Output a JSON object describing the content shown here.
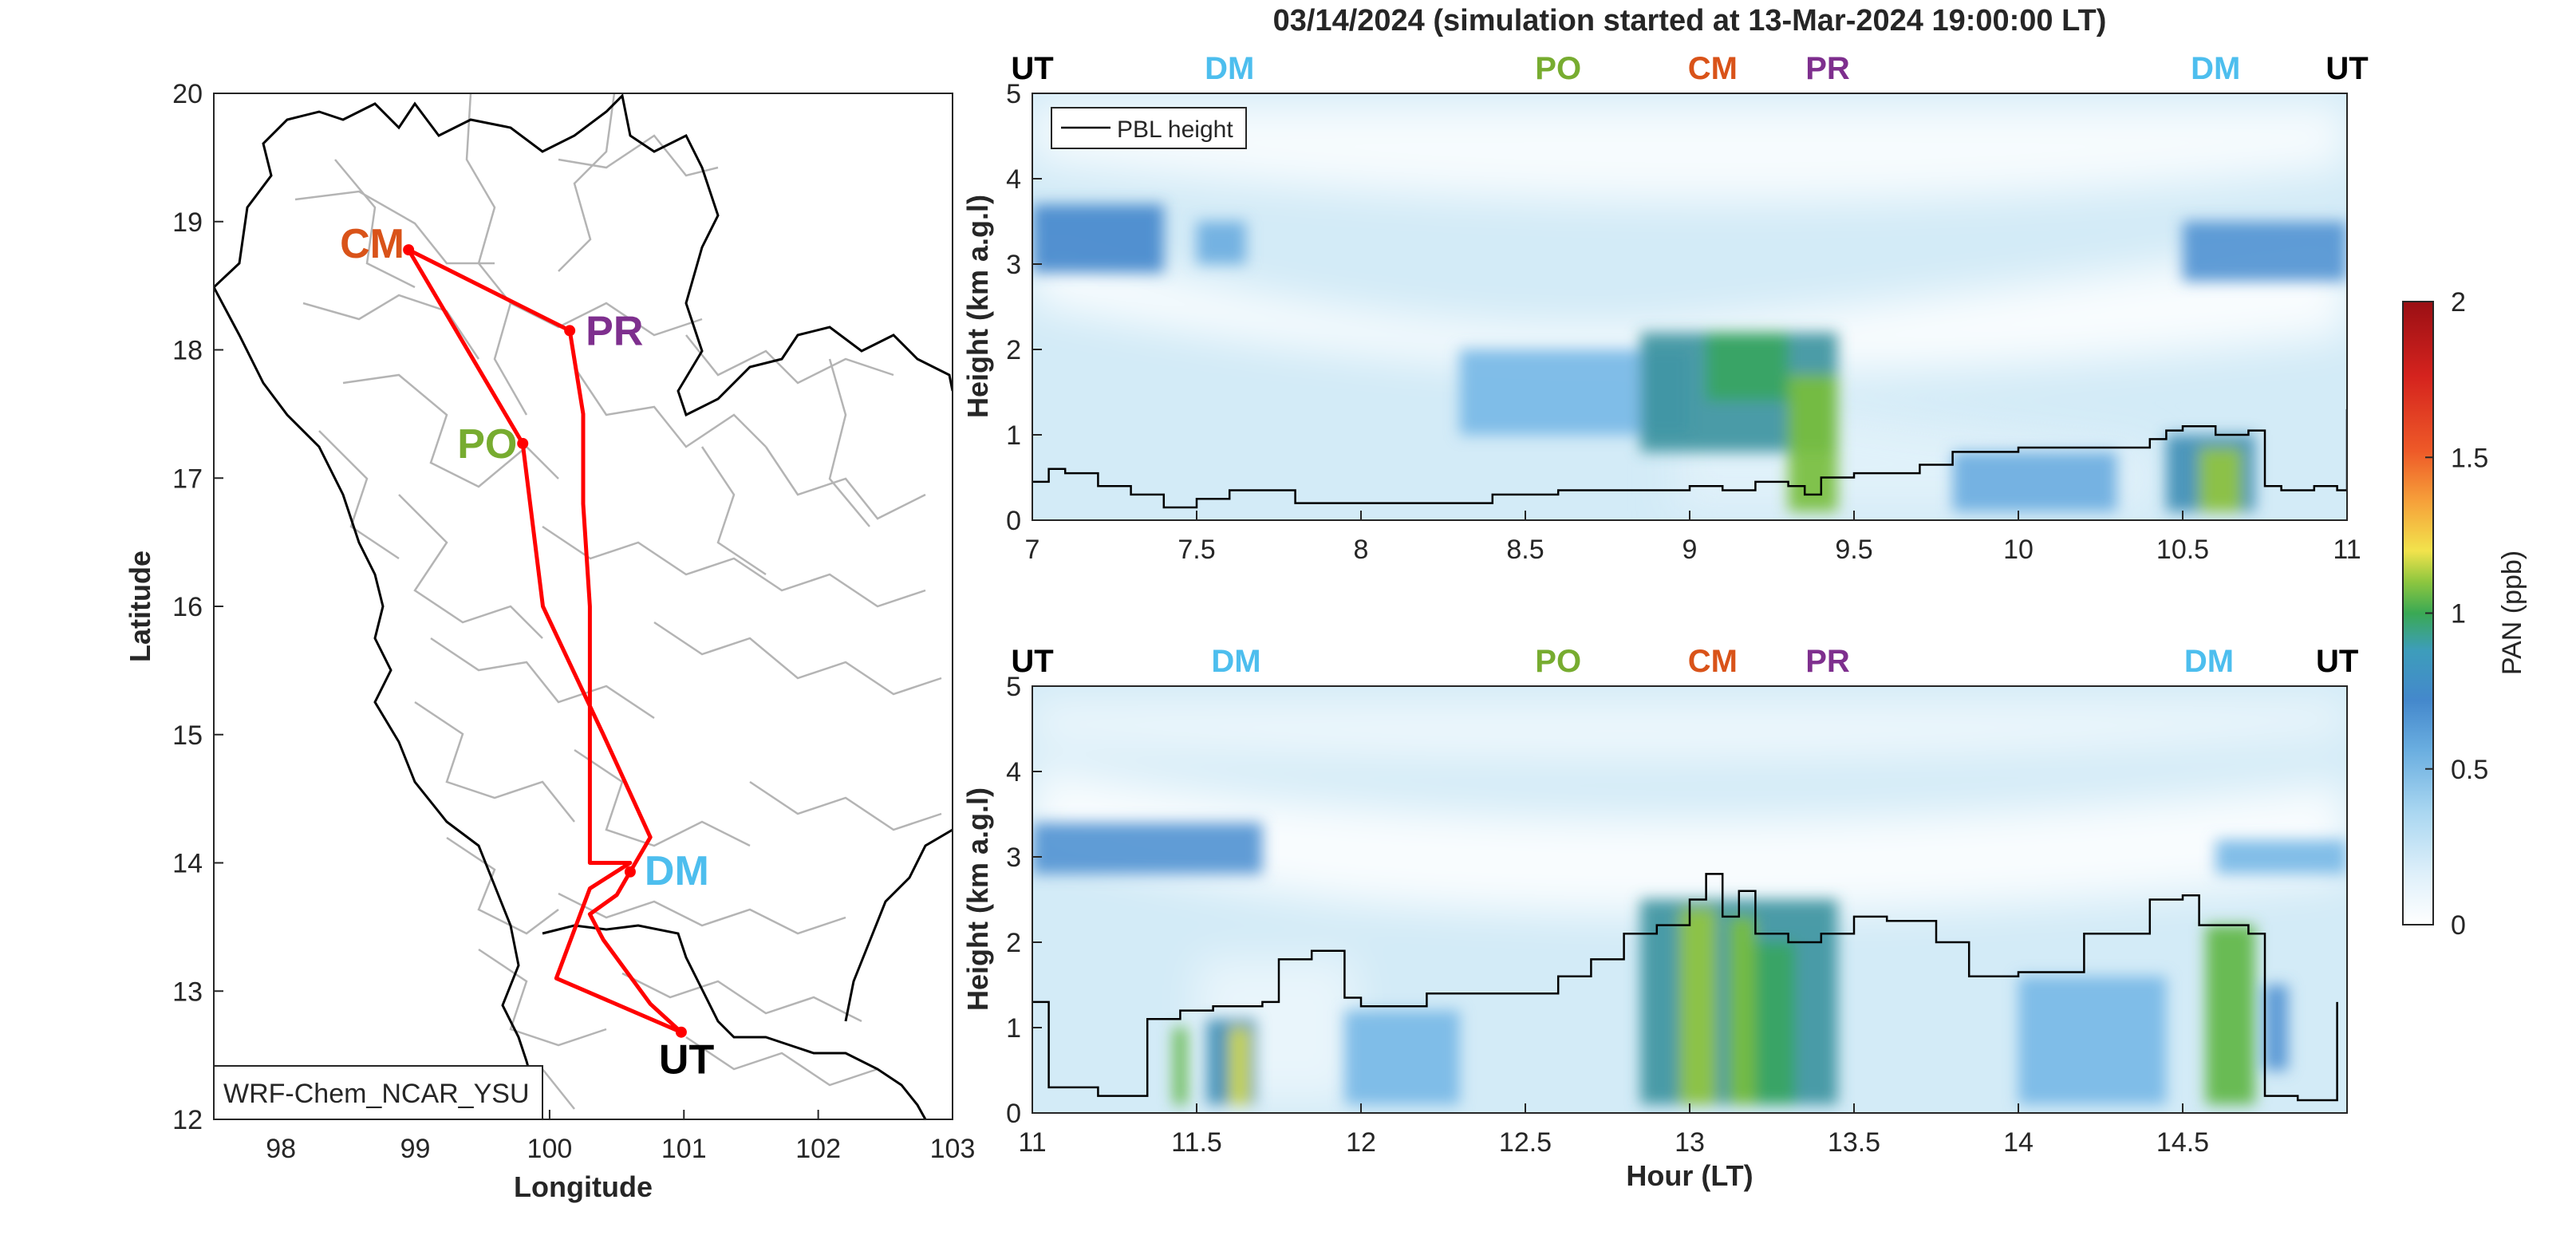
{
  "title": "03/14/2024 (simulation started at 13-Mar-2024 19:00:00 LT)",
  "colors": {
    "UT": "#000000",
    "DM": "#4DBEEE",
    "PO": "#77AC30",
    "CM": "#D95319",
    "PR": "#7E2F8E",
    "route": "#FF0000"
  },
  "map": {
    "xlabel": "Longitude",
    "ylabel": "Latitude",
    "xlim": [
      97.5,
      103
    ],
    "ylim": [
      12,
      20
    ],
    "xticks": [
      "98",
      "99",
      "100",
      "101",
      "102",
      "103"
    ],
    "yticks": [
      "12",
      "13",
      "14",
      "15",
      "16",
      "17",
      "18",
      "19",
      "20"
    ],
    "model_label": "WRF-Chem_NCAR_YSU",
    "sites": [
      {
        "code": "CM",
        "lon": 98.95,
        "lat": 18.78
      },
      {
        "code": "PR",
        "lon": 100.15,
        "lat": 18.15
      },
      {
        "code": "PO",
        "lon": 99.8,
        "lat": 17.27
      },
      {
        "code": "DM",
        "lon": 100.6,
        "lat": 13.93
      },
      {
        "code": "UT",
        "lon": 100.98,
        "lat": 12.68
      }
    ]
  },
  "colorbar": {
    "label": "PAN (ppb)",
    "ticks": [
      "0",
      "0.5",
      "1",
      "1.5",
      "2"
    ],
    "range": [
      0,
      2
    ]
  },
  "chart_data": [
    {
      "type": "heatmap",
      "panel": "upper",
      "ylabel": "Height (km a.g.l)",
      "xlabel": "",
      "xlim": [
        7,
        11
      ],
      "ylim": [
        0,
        5
      ],
      "xticks": [
        "7",
        "7.5",
        "8",
        "8.5",
        "9",
        "9.5",
        "10",
        "10.5",
        "11"
      ],
      "yticks": [
        "0",
        "1",
        "2",
        "3",
        "4",
        "5"
      ],
      "legend": "PBL height",
      "legend_position": "top-left",
      "site_markers": [
        {
          "code": "UT",
          "x": 7.0
        },
        {
          "code": "DM",
          "x": 7.6
        },
        {
          "code": "PO",
          "x": 8.6
        },
        {
          "code": "CM",
          "x": 9.07
        },
        {
          "code": "PR",
          "x": 9.42
        },
        {
          "code": "DM",
          "x": 10.6
        },
        {
          "code": "UT",
          "x": 11.0
        }
      ],
      "pbl_height": {
        "x": [
          7.0,
          7.05,
          7.1,
          7.2,
          7.3,
          7.4,
          7.5,
          7.6,
          7.8,
          8.0,
          8.2,
          8.4,
          8.6,
          8.8,
          9.0,
          9.1,
          9.2,
          9.3,
          9.35,
          9.4,
          9.5,
          9.7,
          9.8,
          9.9,
          10.0,
          10.2,
          10.4,
          10.45,
          10.5,
          10.6,
          10.7,
          10.75,
          10.8,
          10.9,
          10.97,
          11.0
        ],
        "y": [
          0.45,
          0.6,
          0.55,
          0.4,
          0.3,
          0.15,
          0.25,
          0.35,
          0.2,
          0.2,
          0.2,
          0.3,
          0.35,
          0.35,
          0.4,
          0.35,
          0.45,
          0.4,
          0.3,
          0.5,
          0.55,
          0.65,
          0.8,
          0.8,
          0.85,
          0.85,
          0.95,
          1.05,
          1.1,
          1.0,
          1.05,
          0.4,
          0.35,
          0.4,
          0.35,
          1.3
        ]
      },
      "features": [
        {
          "x0": 7.0,
          "x1": 7.4,
          "y0": 2.9,
          "y1": 3.7,
          "value": 0.5
        },
        {
          "x0": 7.5,
          "x1": 7.65,
          "y0": 3.0,
          "y1": 3.5,
          "value": 0.35
        },
        {
          "x0": 8.3,
          "x1": 9.0,
          "y0": 1.0,
          "y1": 2.0,
          "value": 0.3
        },
        {
          "x0": 8.85,
          "x1": 9.45,
          "y0": 0.8,
          "y1": 2.2,
          "value": 0.6
        },
        {
          "x0": 9.05,
          "x1": 9.3,
          "y0": 1.4,
          "y1": 2.2,
          "value": 0.7
        },
        {
          "x0": 9.3,
          "x1": 9.45,
          "y0": 0.1,
          "y1": 1.7,
          "value": 0.85
        },
        {
          "x0": 9.8,
          "x1": 10.3,
          "y0": 0.1,
          "y1": 0.8,
          "value": 0.35
        },
        {
          "x0": 10.45,
          "x1": 10.72,
          "y0": 0.1,
          "y1": 1.0,
          "value": 0.55
        },
        {
          "x0": 10.55,
          "x1": 10.68,
          "y0": 0.1,
          "y1": 0.85,
          "value": 0.9
        },
        {
          "x0": 10.5,
          "x1": 11.0,
          "y0": 2.8,
          "y1": 3.5,
          "value": 0.45
        }
      ]
    },
    {
      "type": "heatmap",
      "panel": "lower",
      "ylabel": "Height (km a.g.l)",
      "xlabel": "Hour (LT)",
      "xlim": [
        11,
        15
      ],
      "ylim": [
        0,
        5
      ],
      "xticks": [
        "11",
        "11.5",
        "12",
        "12.5",
        "13",
        "13.5",
        "14",
        "14.5"
      ],
      "yticks": [
        "0",
        "1",
        "2",
        "3",
        "4",
        "5"
      ],
      "site_markers": [
        {
          "code": "UT",
          "x": 11.0
        },
        {
          "code": "DM",
          "x": 11.62
        },
        {
          "code": "PO",
          "x": 12.6
        },
        {
          "code": "CM",
          "x": 13.07
        },
        {
          "code": "PR",
          "x": 13.42
        },
        {
          "code": "DM",
          "x": 14.58
        },
        {
          "code": "UT",
          "x": 14.97
        }
      ],
      "pbl_height": {
        "x": [
          11.0,
          11.05,
          11.1,
          11.2,
          11.3,
          11.35,
          11.45,
          11.55,
          11.7,
          11.75,
          11.85,
          11.95,
          12.0,
          12.2,
          12.4,
          12.6,
          12.7,
          12.8,
          12.9,
          13.0,
          13.05,
          13.1,
          13.15,
          13.2,
          13.3,
          13.4,
          13.5,
          13.6,
          13.75,
          13.85,
          14.0,
          14.2,
          14.4,
          14.5,
          14.55,
          14.6,
          14.7,
          14.75,
          14.85,
          14.95,
          14.97
        ],
        "y": [
          1.3,
          0.3,
          0.3,
          0.2,
          0.2,
          1.1,
          1.2,
          1.25,
          1.3,
          1.8,
          1.9,
          1.35,
          1.25,
          1.4,
          1.4,
          1.6,
          1.8,
          2.1,
          2.2,
          2.5,
          2.8,
          2.3,
          2.6,
          2.1,
          2.0,
          2.1,
          2.3,
          2.25,
          2.0,
          1.6,
          1.65,
          2.1,
          2.5,
          2.55,
          2.2,
          2.2,
          2.1,
          0.2,
          0.15,
          0.15,
          1.3
        ]
      },
      "features": [
        {
          "x0": 11.0,
          "x1": 11.7,
          "y0": 2.8,
          "y1": 3.4,
          "value": 0.45
        },
        {
          "x0": 11.43,
          "x1": 11.47,
          "y0": 0.1,
          "y1": 1.0,
          "value": 0.8
        },
        {
          "x0": 11.53,
          "x1": 11.68,
          "y0": 0.1,
          "y1": 1.1,
          "value": 0.55
        },
        {
          "x0": 11.6,
          "x1": 11.66,
          "y0": 0.1,
          "y1": 1.0,
          "value": 1.05
        },
        {
          "x0": 11.95,
          "x1": 12.3,
          "y0": 0.1,
          "y1": 1.2,
          "value": 0.3
        },
        {
          "x0": 12.85,
          "x1": 13.45,
          "y0": 0.1,
          "y1": 2.5,
          "value": 0.6
        },
        {
          "x0": 12.97,
          "x1": 13.08,
          "y0": 0.1,
          "y1": 2.4,
          "value": 0.9
        },
        {
          "x0": 13.12,
          "x1": 13.2,
          "y0": 0.1,
          "y1": 2.3,
          "value": 0.85
        },
        {
          "x0": 13.2,
          "x1": 13.32,
          "y0": 0.1,
          "y1": 2.0,
          "value": 0.7
        },
        {
          "x0": 14.0,
          "x1": 14.45,
          "y0": 0.1,
          "y1": 1.6,
          "value": 0.3
        },
        {
          "x0": 14.57,
          "x1": 14.72,
          "y0": 0.1,
          "y1": 2.2,
          "value": 0.8
        },
        {
          "x0": 14.75,
          "x1": 14.82,
          "y0": 0.5,
          "y1": 1.5,
          "value": 0.45
        },
        {
          "x0": 14.6,
          "x1": 15.0,
          "y0": 2.8,
          "y1": 3.2,
          "value": 0.3
        }
      ]
    }
  ]
}
